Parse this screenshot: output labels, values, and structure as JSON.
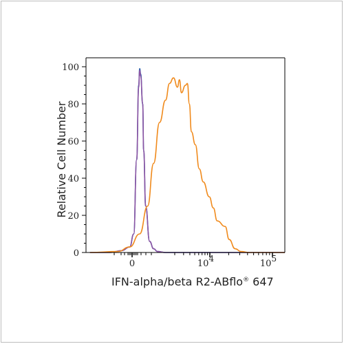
{
  "chart_data": {
    "type": "line",
    "xlabel": "IFN-alpha/beta R2-ABflo",
    "xlabel_sup": "®",
    "xlabel_suffix": " 647",
    "ylabel": "Relative Cell Number",
    "ylim": [
      0,
      100
    ],
    "y_ticks": [
      "0",
      "20",
      "40",
      "60",
      "80",
      "100"
    ],
    "x_scale": "biexponential",
    "x_ticks": [
      {
        "base": "0",
        "exp": "",
        "value": 0
      },
      {
        "base": "10",
        "exp": "4",
        "value": 10000
      },
      {
        "base": "10",
        "exp": "5",
        "value": 100000
      }
    ],
    "grid": false,
    "series": [
      {
        "color": "#2f63ad",
        "display_x": [
          0.02,
          0.12,
          0.18,
          0.22,
          0.24,
          0.255,
          0.265,
          0.27,
          0.275,
          0.285,
          0.29,
          0.3,
          0.32,
          0.34,
          0.36,
          0.4,
          1.0
        ],
        "values": [
          0,
          0,
          1,
          3,
          10,
          50,
          90,
          99,
          96,
          80,
          55,
          25,
          6,
          2,
          0.5,
          0,
          0
        ]
      },
      {
        "color": "#8c54a3",
        "display_x": [
          0.02,
          0.12,
          0.18,
          0.22,
          0.24,
          0.255,
          0.265,
          0.27,
          0.275,
          0.285,
          0.29,
          0.3,
          0.32,
          0.34,
          0.36,
          0.4,
          1.0
        ],
        "values": [
          0,
          0,
          1,
          3,
          10,
          50,
          89,
          98,
          95,
          80,
          55,
          25,
          6,
          2,
          0.5,
          0,
          0
        ]
      },
      {
        "color": "#f08a1c",
        "display_x": [
          0.02,
          0.16,
          0.22,
          0.27,
          0.31,
          0.34,
          0.37,
          0.4,
          0.42,
          0.44,
          0.46,
          0.47,
          0.48,
          0.5,
          0.51,
          0.52,
          0.53,
          0.55,
          0.57,
          0.59,
          0.62,
          0.64,
          0.66,
          0.7,
          0.72,
          0.75,
          0.78,
          0.82,
          0.86,
          0.92,
          1.0
        ],
        "values": [
          0,
          0.5,
          3,
          10,
          25,
          48,
          70,
          82,
          91,
          94,
          89,
          93,
          86,
          90,
          91,
          80,
          65,
          58,
          45,
          38,
          30,
          24,
          17,
          14,
          7,
          2,
          0.5,
          0,
          0,
          0,
          0
        ]
      }
    ]
  }
}
